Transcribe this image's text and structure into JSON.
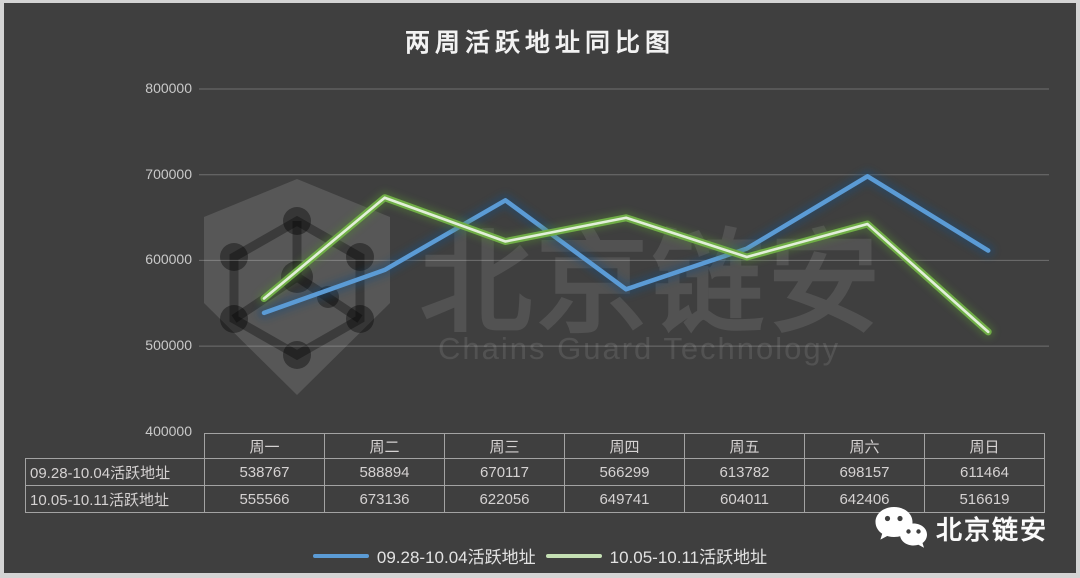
{
  "page": {
    "background": "#3f3f3f",
    "frame_color": "#d4d4d4"
  },
  "chart_data": {
    "type": "line",
    "title": "两周活跃地址同比图",
    "categories": [
      "周一",
      "周二",
      "周三",
      "周四",
      "周五",
      "周六",
      "周日"
    ],
    "series": [
      {
        "name": "09.28-10.04活跃地址",
        "color": "#5b9bd5",
        "glow_color": "#1f4e79",
        "core_color": null,
        "legend_color": "#5b9bd5",
        "values": [
          538767,
          588894,
          670117,
          566299,
          613782,
          698157,
          611464
        ]
      },
      {
        "name": "10.05-10.11活跃地址",
        "color": "#70ad47",
        "glow_color": "#538135",
        "core_color": "#e2efd9",
        "legend_color": "#c5e0b4",
        "values": [
          555566,
          673136,
          622056,
          649741,
          604011,
          642406,
          516619
        ]
      }
    ],
    "xlabel": "",
    "ylabel": "",
    "ylim": [
      400000,
      800000
    ],
    "yticks": [
      400000,
      500000,
      600000,
      700000,
      800000
    ],
    "grid": true,
    "legend_position": "bottom"
  },
  "watermark": {
    "cn": "北京链安",
    "en": "Chains Guard Technology",
    "logo": "shield-network-icon"
  },
  "footer_brand": {
    "icon": "wechat-icon",
    "label": "北京链安"
  }
}
